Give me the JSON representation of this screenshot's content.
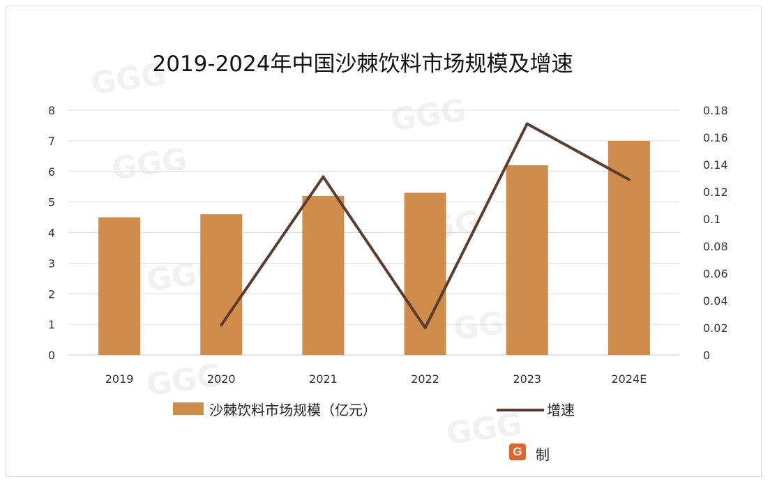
{
  "chart_data": {
    "type": "bar",
    "title": "2019-2024年中国沙棘饮料市场规模及增速",
    "categories": [
      "2019",
      "2020",
      "2021",
      "2022",
      "2023",
      "2024E"
    ],
    "series": [
      {
        "name": "沙棘饮料市场规模（亿元）",
        "type": "bar",
        "axis": "left",
        "values": [
          4.5,
          4.6,
          5.2,
          5.3,
          6.2,
          7.0
        ],
        "color": "#d08c4a"
      },
      {
        "name": "增速",
        "type": "line",
        "axis": "right",
        "values": [
          null,
          0.022,
          0.131,
          0.02,
          0.17,
          0.129
        ],
        "color": "#5b3d2e"
      }
    ],
    "left_axis": {
      "ylim": [
        0,
        8
      ],
      "ticks": [
        "0",
        "1",
        "2",
        "3",
        "4",
        "5",
        "6",
        "7",
        "8"
      ]
    },
    "right_axis": {
      "ylim": [
        0,
        0.18
      ],
      "ticks": [
        "0",
        "0.02",
        "0.04",
        "0.06",
        "0.08",
        "0.1",
        "0.12",
        "0.14",
        "0.16",
        "0.18"
      ]
    },
    "grid": true,
    "legend": "bottom"
  },
  "footer": {
    "brand_text": "制"
  },
  "colors": {
    "logo": "#e0642c",
    "bar": "#d08c4a",
    "line": "#5b3d2e"
  }
}
